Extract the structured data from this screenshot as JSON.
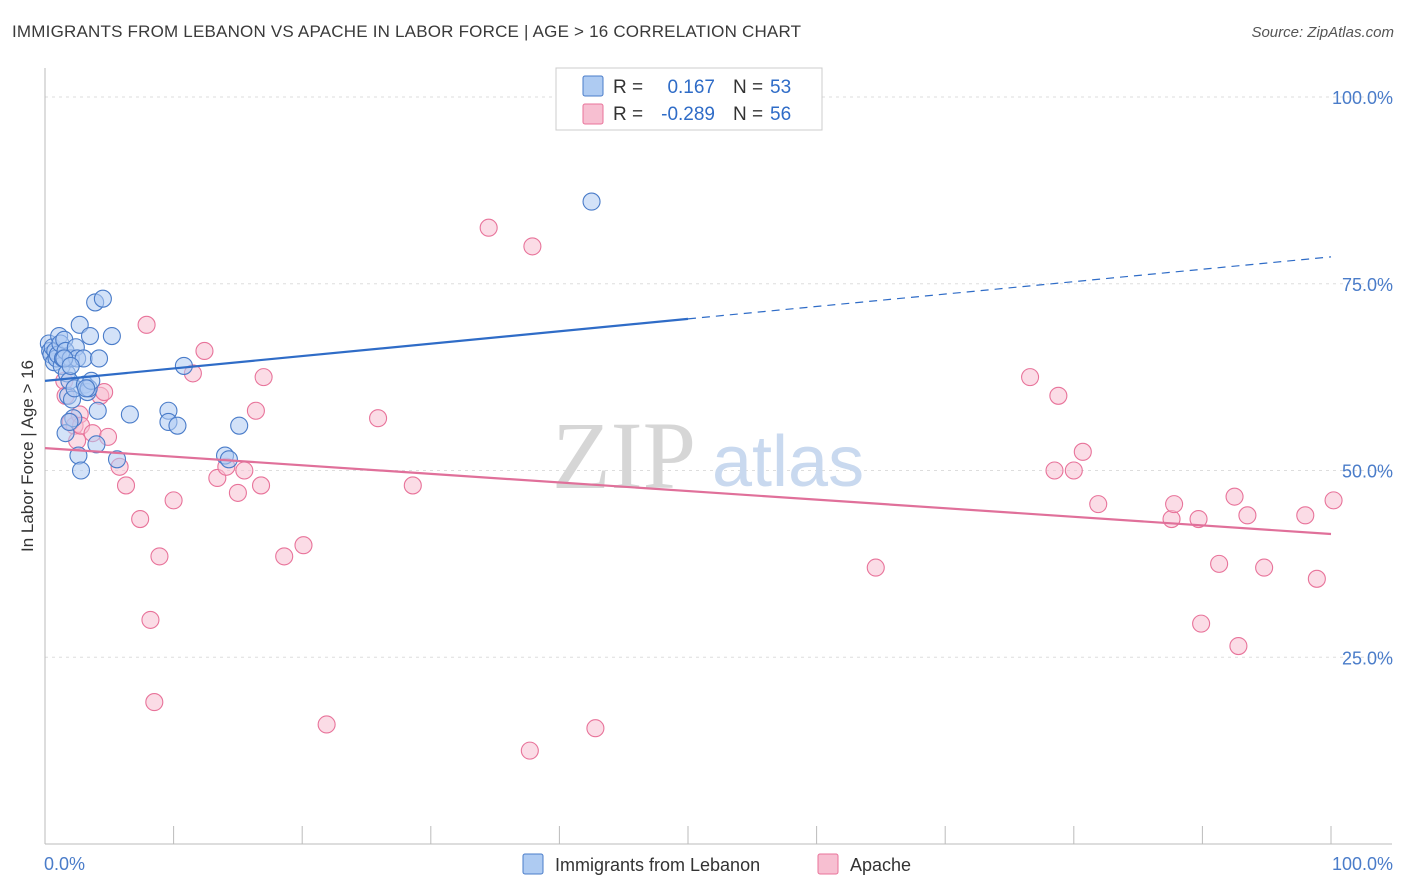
{
  "title": "IMMIGRANTS FROM LEBANON VS APACHE IN LABOR FORCE | AGE > 16 CORRELATION CHART",
  "source": "Source: ZipAtlas.com",
  "watermark": {
    "zip": "ZIP",
    "atlas": "atlas"
  },
  "colors": {
    "blue": "#4a7cc9",
    "blue_fill": "#aecbf2",
    "blue_line": "#2f6cc7",
    "pink": "#e8739a",
    "pink_fill": "#f7bfd1",
    "pink_line": "#e0709a"
  },
  "legend": {
    "rows": [
      {
        "r_label": "R =",
        "r_value": "0.167",
        "n_label": "N =",
        "n_value": "53"
      },
      {
        "r_label": "R =",
        "r_value": "-0.289",
        "n_label": "N =",
        "n_value": "56"
      }
    ]
  },
  "bottom_legend": [
    "Immigrants from Lebanon",
    "Apache"
  ],
  "chart_data": {
    "type": "scatter",
    "title": "IMMIGRANTS FROM LEBANON VS APACHE IN LABOR FORCE | AGE > 16 CORRELATION CHART",
    "xlabel": "",
    "ylabel": "In Labor Force | Age > 16",
    "xlim": [
      0,
      100
    ],
    "ylim": [
      0,
      100
    ],
    "x_tick_labels": [
      "0.0%",
      "100.0%"
    ],
    "y_tick_labels": [
      "100.0%",
      "75.0%",
      "50.0%",
      "25.0%"
    ],
    "y_ticks": [
      100,
      75,
      50,
      25
    ],
    "grid": true,
    "legend_position": "top-center",
    "series": [
      {
        "name": "Immigrants from Lebanon",
        "color": "#4a7cc9",
        "trend": {
          "x0": 0,
          "y0": 62.0,
          "x1": 50,
          "y1": 70.3,
          "dashed_to_x": 100,
          "dashed_to_y": 78.6
        },
        "points": [
          [
            0.3,
            67
          ],
          [
            0.4,
            66
          ],
          [
            0.5,
            65.5
          ],
          [
            0.6,
            66.5
          ],
          [
            0.7,
            64.5
          ],
          [
            0.8,
            66
          ],
          [
            0.9,
            65
          ],
          [
            1.0,
            65.5
          ],
          [
            1.1,
            68
          ],
          [
            1.2,
            67
          ],
          [
            1.3,
            64
          ],
          [
            1.4,
            65
          ],
          [
            1.5,
            67.5
          ],
          [
            1.6,
            66
          ],
          [
            1.7,
            63
          ],
          [
            1.8,
            60
          ],
          [
            1.9,
            62
          ],
          [
            2.0,
            65
          ],
          [
            2.1,
            59.5
          ],
          [
            2.2,
            57
          ],
          [
            1.6,
            55
          ],
          [
            1.9,
            56.5
          ],
          [
            2.3,
            61
          ],
          [
            2.4,
            66.5
          ],
          [
            2.5,
            65
          ],
          [
            2.6,
            52
          ],
          [
            2.7,
            69.5
          ],
          [
            2.8,
            50
          ],
          [
            3.0,
            65
          ],
          [
            3.1,
            61.5
          ],
          [
            3.3,
            60.5
          ],
          [
            3.4,
            61
          ],
          [
            3.6,
            62
          ],
          [
            3.5,
            68
          ],
          [
            3.9,
            72.5
          ],
          [
            4.1,
            58
          ],
          [
            4.2,
            65
          ],
          [
            4.0,
            53.5
          ],
          [
            4.5,
            73
          ],
          [
            5.2,
            68
          ],
          [
            5.6,
            51.5
          ],
          [
            6.6,
            57.5
          ],
          [
            9.6,
            58
          ],
          [
            9.6,
            56.5
          ],
          [
            10.3,
            56
          ],
          [
            10.8,
            64
          ],
          [
            14.0,
            52
          ],
          [
            14.3,
            51.5
          ],
          [
            15.1,
            56
          ],
          [
            42.5,
            86
          ],
          [
            1.5,
            65
          ],
          [
            2.0,
            64
          ],
          [
            3.2,
            61
          ]
        ]
      },
      {
        "name": "Apache",
        "color": "#e8739a",
        "trend": {
          "x0": 0,
          "y0": 53.0,
          "x1": 100,
          "y1": 41.5
        },
        "points": [
          [
            1.5,
            62
          ],
          [
            1.6,
            60
          ],
          [
            2.0,
            56.5
          ],
          [
            2.3,
            56
          ],
          [
            2.5,
            54
          ],
          [
            2.7,
            57.5
          ],
          [
            2.8,
            56
          ],
          [
            3.7,
            55
          ],
          [
            4.3,
            60
          ],
          [
            4.9,
            54.5
          ],
          [
            4.6,
            60.5
          ],
          [
            5.8,
            50.5
          ],
          [
            6.3,
            48
          ],
          [
            7.4,
            43.5
          ],
          [
            7.9,
            69.5
          ],
          [
            8.2,
            30
          ],
          [
            8.5,
            19
          ],
          [
            8.9,
            38.5
          ],
          [
            10.0,
            46
          ],
          [
            11.5,
            63
          ],
          [
            12.4,
            66
          ],
          [
            13.4,
            49
          ],
          [
            14.1,
            50.5
          ],
          [
            15.0,
            47
          ],
          [
            15.5,
            50
          ],
          [
            16.4,
            58
          ],
          [
            16.8,
            48
          ],
          [
            17.0,
            62.5
          ],
          [
            18.6,
            38.5
          ],
          [
            20.1,
            40
          ],
          [
            21.9,
            16
          ],
          [
            25.9,
            57
          ],
          [
            28.6,
            48
          ],
          [
            34.5,
            82.5
          ],
          [
            37.7,
            12.5
          ],
          [
            37.9,
            80
          ],
          [
            42.8,
            15.5
          ],
          [
            64.6,
            37
          ],
          [
            76.6,
            62.5
          ],
          [
            78.5,
            50
          ],
          [
            78.8,
            60
          ],
          [
            80.0,
            50
          ],
          [
            80.7,
            52.5
          ],
          [
            81.9,
            45.5
          ],
          [
            87.6,
            43.5
          ],
          [
            87.8,
            45.5
          ],
          [
            89.7,
            43.5
          ],
          [
            89.9,
            29.5
          ],
          [
            91.3,
            37.5
          ],
          [
            92.8,
            26.5
          ],
          [
            92.5,
            46.5
          ],
          [
            93.5,
            44
          ],
          [
            94.8,
            37
          ],
          [
            98.9,
            35.5
          ],
          [
            100.2,
            46
          ],
          [
            98.0,
            44
          ]
        ]
      }
    ]
  }
}
